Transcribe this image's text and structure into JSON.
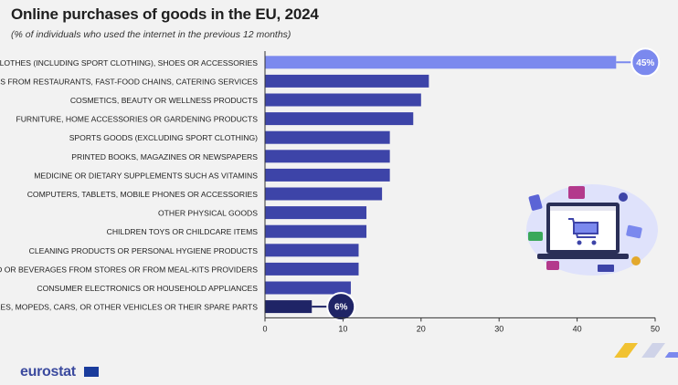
{
  "header": {
    "title": "Online purchases of goods in the EU, 2024",
    "subtitle": "(% of individuals who used the internet in the previous 12 months)"
  },
  "footer": {
    "brand": "eurostat"
  },
  "colors": {
    "bar": "#3d44a8",
    "highlight_top": "#7b89ee",
    "highlight_bottom": "#1f2466",
    "axis": "#333333"
  },
  "chart_data": {
    "type": "bar",
    "orientation": "horizontal",
    "categories": [
      "CLOTHES (INCLUDING SPORT CLOTHING), SHOES OR ACCESSORIES",
      "DELIVERIES FROM RESTAURANTS, FAST-FOOD CHAINS, CATERING SERVICES",
      "COSMETICS, BEAUTY OR WELLNESS PRODUCTS",
      "FURNITURE, HOME ACCESSORIES OR GARDENING PRODUCTS",
      "SPORTS GOODS (EXCLUDING SPORT CLOTHING)",
      "PRINTED BOOKS, MAGAZINES OR NEWSPAPERS",
      "MEDICINE OR DIETARY SUPPLEMENTS SUCH AS VITAMINS",
      "COMPUTERS, TABLETS, MOBILE PHONES OR ACCESSORIES",
      "OTHER PHYSICAL GOODS",
      "CHILDREN TOYS OR CHILDCARE ITEMS",
      "CLEANING PRODUCTS OR PERSONAL HYGIENE PRODUCTS",
      "FOOD OR BEVERAGES FROM STORES OR FROM MEAL-KITS PROVIDERS",
      "CONSUMER ELECTRONICS OR HOUSEHOLD APPLIANCES",
      "BICYCLES, MOPEDS, CARS, OR OTHER VEHICLES OR THEIR SPARE PARTS"
    ],
    "values": [
      45,
      21,
      20,
      19,
      16,
      16,
      16,
      15,
      13,
      13,
      12,
      12,
      11,
      6
    ],
    "annotations": [
      {
        "index": 0,
        "label": "45%"
      },
      {
        "index": 13,
        "label": "6%"
      }
    ],
    "xlim": [
      0,
      50
    ],
    "xticks": [
      0,
      10,
      20,
      30,
      40,
      50
    ],
    "grid": false,
    "legend": "none"
  }
}
